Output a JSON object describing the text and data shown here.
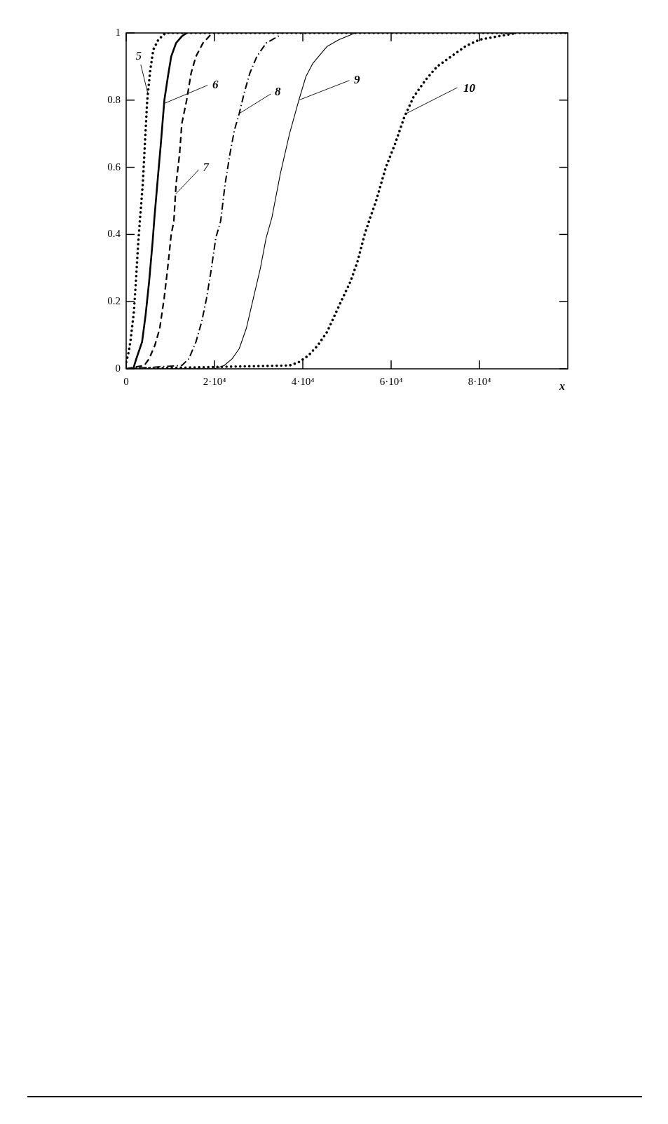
{
  "chart_data": {
    "type": "line",
    "xlabel": "x",
    "xlim": [
      0,
      100000
    ],
    "xticks": [
      0,
      {
        "value": 20000,
        "label": "2·10⁴"
      },
      {
        "value": 40000,
        "label": "4·10⁴"
      },
      {
        "value": 60000,
        "label": "6·10⁴"
      },
      {
        "value": 80000,
        "label": "8·10⁴"
      }
    ],
    "ylim": [
      0,
      1
    ],
    "yticks": [
      0,
      0.2,
      0.4,
      0.6,
      0.8,
      1
    ],
    "annotations": [
      {
        "text": "5",
        "x": 4900,
        "y": 0.82
      },
      {
        "text": "6",
        "x": 8600,
        "y": 0.79
      },
      {
        "text": "7",
        "x": 11200,
        "y": 0.52
      },
      {
        "text": "8",
        "x": 25600,
        "y": 0.76
      },
      {
        "text": "9",
        "x": 39100,
        "y": 0.8
      },
      {
        "text": "10",
        "x": 63400,
        "y": 0.76
      }
    ],
    "series": [
      {
        "color": "#000000",
        "line_style": "dotted",
        "x": [
          0,
          400,
          950,
          1750,
          2200,
          2700,
          3100,
          3760,
          4240,
          4770,
          5460,
          6140,
          7300,
          8900,
          100000
        ],
        "values": [
          0.02,
          0.04,
          0.08,
          0.17,
          0.26,
          0.37,
          0.44,
          0.55,
          0.67,
          0.8,
          0.89,
          0.95,
          0.98,
          1,
          1
        ]
      },
      {
        "color": "#000000",
        "line_style": "solid",
        "x": [
          0,
          1600,
          2300,
          3600,
          4400,
          5200,
          6000,
          6400,
          7050,
          7850,
          8650,
          9450,
          10200,
          11300,
          12600,
          13700
        ],
        "values": [
          0,
          0,
          0.03,
          0.08,
          0.16,
          0.26,
          0.38,
          0.45,
          0.55,
          0.67,
          0.8,
          0.87,
          0.93,
          0.97,
          0.99,
          1
        ]
      },
      {
        "color": "#000000",
        "line_style": "dashed",
        "x": [
          0,
          4100,
          5200,
          6500,
          7600,
          8600,
          9400,
          10200,
          10800,
          11300,
          12100,
          12600,
          13700,
          14700,
          15800,
          17400,
          19500
        ],
        "values": [
          0,
          0.01,
          0.03,
          0.07,
          0.12,
          0.21,
          0.3,
          0.4,
          0.44,
          0.55,
          0.64,
          0.73,
          0.8,
          0.88,
          0.93,
          0.97,
          1
        ]
      },
      {
        "color": "#000000",
        "line_style": "dashdot",
        "x": [
          0,
          12600,
          14200,
          15800,
          17100,
          18200,
          19200,
          20300,
          21400,
          22400,
          23500,
          24500,
          25600,
          26700,
          28000,
          29600,
          31700,
          34400,
          35000
        ],
        "values": [
          0,
          0.01,
          0.03,
          0.08,
          0.14,
          0.21,
          0.29,
          0.39,
          0.44,
          0.55,
          0.64,
          0.71,
          0.76,
          0.82,
          0.88,
          0.93,
          0.97,
          0.99,
          1
        ]
      },
      {
        "color": "#000000",
        "line_style": "solid",
        "x": [
          0,
          20000,
          22200,
          24000,
          25600,
          27200,
          28800,
          30400,
          31700,
          33000,
          34900,
          37000,
          39100,
          40700,
          42300,
          45500,
          48200,
          51900
        ],
        "values": [
          0,
          0,
          0.01,
          0.03,
          0.06,
          0.12,
          0.21,
          0.3,
          0.39,
          0.45,
          0.58,
          0.7,
          0.8,
          0.87,
          0.91,
          0.96,
          0.98,
          1
        ]
      },
      {
        "color": "#000000",
        "line_style": "dotted",
        "x": [
          0,
          37000,
          39100,
          41300,
          43400,
          45500,
          47600,
          49000,
          50800,
          52400,
          54000,
          55000,
          56600,
          58800,
          60900,
          63000,
          65100,
          67800,
          70400,
          73600,
          76800,
          80000,
          84200,
          88500
        ],
        "values": [
          0,
          0.01,
          0.02,
          0.04,
          0.07,
          0.11,
          0.17,
          0.21,
          0.26,
          0.32,
          0.4,
          0.44,
          0.5,
          0.6,
          0.67,
          0.75,
          0.81,
          0.86,
          0.9,
          0.93,
          0.96,
          0.98,
          0.99,
          1
        ]
      }
    ]
  }
}
